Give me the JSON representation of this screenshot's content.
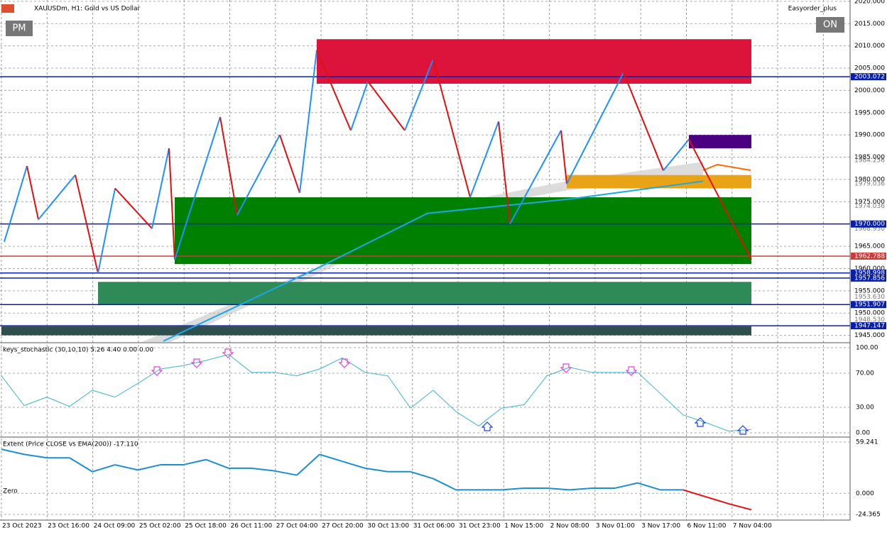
{
  "header": {
    "symbol_label": "XAUUSDm, H1:  Gold vs US Dollar",
    "pm_button": "PM",
    "expert": "Easyorder_plus",
    "on_button": "ON"
  },
  "price_panel": {
    "ylim": [
      1943.5,
      2020.3
    ],
    "bar_count": 264,
    "yticks": [
      {
        "value": 2020,
        "label": "2020.000"
      },
      {
        "value": 2015,
        "label": "2015.000"
      },
      {
        "value": 2010,
        "label": "2010.000"
      },
      {
        "value": 2005,
        "label": "2005.000"
      },
      {
        "value": 2000,
        "label": "2000.000"
      },
      {
        "value": 1995,
        "label": "1995.000"
      },
      {
        "value": 1990,
        "label": "1990.000"
      },
      {
        "value": 1985,
        "label": "1985.000"
      },
      {
        "value": 1980,
        "label": "1980.000"
      },
      {
        "value": 1975,
        "label": "1975.000"
      },
      {
        "value": 1965,
        "label": "1965.000"
      },
      {
        "value": 1960,
        "label": "1960.000"
      },
      {
        "value": 1955,
        "label": "1955.000"
      },
      {
        "value": 1950,
        "label": "1950.000"
      },
      {
        "value": 1945,
        "label": "1945.000"
      }
    ],
    "extra_labels": [
      {
        "value": 1984.256,
        "label": "1984.256"
      },
      {
        "value": 1979.036,
        "label": "1979.036"
      },
      {
        "value": 1974.036,
        "label": "1974.036"
      },
      {
        "value": 1968.93,
        "label": "1968.930"
      },
      {
        "value": 1953.63,
        "label": "1953.630"
      },
      {
        "value": 1948.53,
        "label": "1948.530"
      }
    ],
    "levels": [
      {
        "value": 2003.072,
        "label": "2003.072",
        "color": "#0a1fa8"
      },
      {
        "value": 1970,
        "label": "1970.000",
        "color": "#0a1fa8"
      },
      {
        "value": 1962.788,
        "label": "1962.788",
        "color": "#c83c3c"
      },
      {
        "value": 1958.998,
        "label": "1958.998",
        "color": "#0a1fa8"
      },
      {
        "value": 1957.856,
        "label": "1957.856",
        "color": "#0a1fa8"
      },
      {
        "value": 1951.907,
        "label": "1951.907",
        "color": "#0a1fa8"
      },
      {
        "value": 1947.147,
        "label": "1947.147",
        "color": "#0a1fa8"
      }
    ],
    "zones": [
      {
        "top": 2011.5,
        "bottom": 2001.5,
        "start_bar": 111,
        "color": "#dc143c"
      },
      {
        "top": 1976,
        "bottom": 1961,
        "start_bar": 61,
        "color": "#008000"
      },
      {
        "top": 1957,
        "bottom": 1952,
        "start_bar": 34,
        "color": "#2e8b57"
      },
      {
        "top": 1947,
        "bottom": 1945,
        "start_bar": 0,
        "color": "#2f4f4f"
      },
      {
        "top": 1990,
        "bottom": 1987,
        "start_bar": 242,
        "color": "#4b0082"
      },
      {
        "top": 1981,
        "bottom": 1978,
        "start_bar": 199,
        "color": "#e8a317"
      }
    ],
    "zigzag": {
      "bars": [
        1,
        9,
        13,
        26,
        34,
        40,
        53,
        59,
        61,
        77,
        83,
        98,
        105,
        111,
        123,
        129,
        142,
        152,
        165,
        175,
        179,
        197,
        199,
        219,
        233,
        242,
        264
      ],
      "prices": [
        1966,
        1983,
        1971,
        1981,
        1959,
        1978,
        1969,
        1987,
        1962,
        1994,
        1972,
        1990,
        1977,
        2009,
        1991,
        2002,
        1991,
        2007,
        1976,
        1993,
        1970,
        1991,
        1979,
        2004,
        1982,
        1989,
        1962
      ]
    },
    "ema": {
      "bars": [
        57,
        111,
        150,
        200,
        247
      ],
      "prices": [
        1943.7,
        1960,
        1972.4,
        1975.6,
        1979.6
      ]
    }
  },
  "stoch_panel": {
    "title": "keys_stochastic (30,10,10) 5.26 4.40 0.00 0.00",
    "ylim": [
      -3.3,
      105
    ],
    "yticks": [
      {
        "value": 100,
        "label": "100.00"
      },
      {
        "value": 70,
        "label": "70.00"
      },
      {
        "value": 30,
        "label": "30.00"
      },
      {
        "value": 0,
        "label": "0.00"
      }
    ],
    "values": [
      67,
      32,
      42,
      31,
      50,
      42,
      58,
      75,
      79,
      85,
      92,
      71,
      71,
      67,
      75,
      88,
      71,
      67,
      29,
      50,
      25,
      8,
      29,
      33,
      67,
      77,
      71,
      71,
      71,
      46,
      21,
      12,
      2,
      4
    ]
  },
  "extent_panel": {
    "title": "Extent (Price CLOSE vs EMA(200)) -17.110",
    "zero_label": "Zero",
    "ylim": [
      -29.3,
      64.2
    ],
    "yticks": [
      {
        "value": 59.241,
        "label": "59.241"
      },
      {
        "value": 0,
        "label": "0.000"
      },
      {
        "value": -24.365,
        "label": "-24.365"
      }
    ],
    "values": [
      51,
      45,
      41,
      41,
      25,
      33,
      27,
      33,
      33,
      39,
      29,
      29,
      26,
      21,
      45,
      37,
      29,
      25,
      25,
      17,
      4,
      4,
      4,
      6,
      6,
      4,
      6,
      6,
      12,
      4,
      4,
      -4,
      -12,
      -19
    ]
  },
  "time_axis": {
    "labels": [
      "23 Oct 2023",
      "23 Oct 16:00",
      "24 Oct 09:00",
      "25 Oct 02:00",
      "25 Oct 18:00",
      "26 Oct 11:00",
      "27 Oct 04:00",
      "27 Oct 20:00",
      "30 Oct 13:00",
      "31 Oct 06:00",
      "31 Oct 23:00",
      "1 Nov 15:00",
      "2 Nov 08:00",
      "3 Nov 01:00",
      "3 Nov 17:00",
      "6 Nov 11:00",
      "7 Nov 04:00"
    ]
  }
}
